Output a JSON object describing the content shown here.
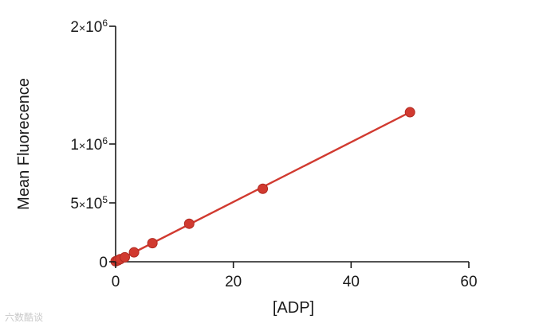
{
  "chart_data": {
    "type": "scatter",
    "title": "",
    "xlabel": "[ADP]",
    "ylabel": "Mean Fluorecence",
    "xlim": [
      0,
      60
    ],
    "ylim": [
      0,
      2000000
    ],
    "x_ticks": [
      {
        "value": 0,
        "label": "0"
      },
      {
        "value": 20,
        "label": "20"
      },
      {
        "value": 40,
        "label": "40"
      },
      {
        "value": 60,
        "label": "60"
      }
    ],
    "y_ticks": [
      {
        "value": 0,
        "mantissa": "0",
        "times": "",
        "base": "",
        "exponent": ""
      },
      {
        "value": 500000,
        "mantissa": "5",
        "times": "×",
        "base": "10",
        "exponent": "5"
      },
      {
        "value": 1000000,
        "mantissa": "1",
        "times": "×",
        "base": "10",
        "exponent": "6"
      },
      {
        "value": 2000000,
        "mantissa": "2",
        "times": "×",
        "base": "10",
        "exponent": "6"
      }
    ],
    "series": [
      {
        "color": "#d13a30",
        "x": [
          0,
          0.39,
          0.78,
          1.56,
          3.125,
          6.25,
          12.5,
          25,
          50
        ],
        "y": [
          4000,
          12000,
          22000,
          38000,
          80000,
          158000,
          323000,
          620000,
          1270000
        ]
      }
    ],
    "fit_line": {
      "x": [
        0,
        50
      ],
      "y": [
        0,
        1270000
      ],
      "color": "#d13a30"
    },
    "grid": false,
    "legend": "none"
  },
  "watermark": {
    "text": "六数酷谈"
  }
}
